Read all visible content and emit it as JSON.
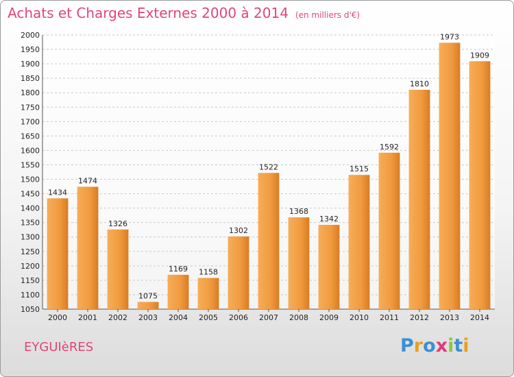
{
  "title": "Achats et Charges Externes 2000 à 2014",
  "unit": "(en milliers d'€)",
  "place": "EYGUIèRES",
  "logo": {
    "text": "Proxiti",
    "letters": [
      {
        "ch": "P",
        "color": "#3b8fd4"
      },
      {
        "ch": "r",
        "color": "#e8a020"
      },
      {
        "ch": "o",
        "color": "#3b8fd4"
      },
      {
        "ch": "x",
        "color": "#e03a7a"
      },
      {
        "ch": "i",
        "color": "#8cc63f"
      },
      {
        "ch": "t",
        "color": "#3b8fd4"
      },
      {
        "ch": "i",
        "color": "#e8a020"
      }
    ]
  },
  "colors": {
    "bar_light": "#f6a64e",
    "bar_dark": "#d77a1d",
    "title": "#e0457b"
  },
  "chart_data": {
    "type": "bar",
    "title": "Achats et Charges Externes 2000 à 2014",
    "subtitle": "(en milliers d'€)",
    "categories": [
      "2000",
      "2001",
      "2002",
      "2003",
      "2004",
      "2005",
      "2006",
      "2007",
      "2008",
      "2009",
      "2010",
      "2011",
      "2012",
      "2013",
      "2014"
    ],
    "values": [
      1434,
      1474,
      1326,
      1075,
      1169,
      1158,
      1302,
      1522,
      1368,
      1342,
      1515,
      1592,
      1810,
      1973,
      1909
    ],
    "ylim": [
      1050,
      2000
    ],
    "yticks": [
      1050,
      1100,
      1150,
      1200,
      1250,
      1300,
      1350,
      1400,
      1450,
      1500,
      1550,
      1600,
      1650,
      1700,
      1750,
      1800,
      1850,
      1900,
      1950,
      2000
    ],
    "grid": true,
    "legend": "none"
  }
}
